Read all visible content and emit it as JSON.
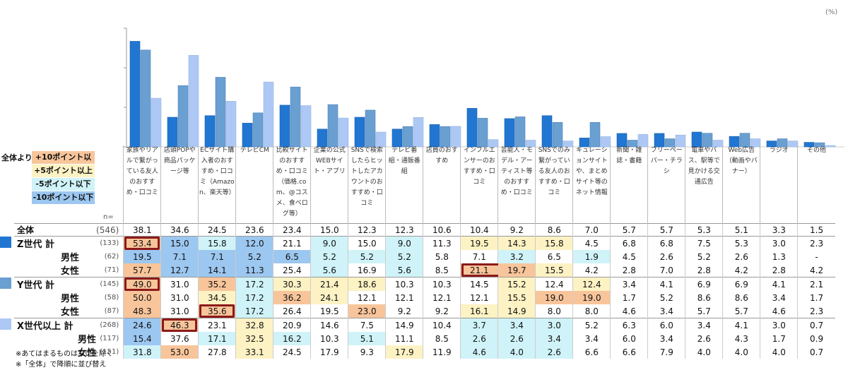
{
  "unit_label": "(%)",
  "legend": {
    "lead": "全体より",
    "items": [
      {
        "label": "+10ポイント以上",
        "color": "#f8c59b"
      },
      {
        "label": "+5ポイント以上",
        "color": "#fdf2c4"
      },
      {
        "label": "-5ポイント以下",
        "color": "#cff3f8"
      },
      {
        "label": "-10ポイント以下",
        "color": "#9cc7f0"
      }
    ],
    "n_label": "n="
  },
  "colors": {
    "z": "#2176d2",
    "y": "#6a9fd2",
    "x": "#adc8f5",
    "p10": "#f8c59b",
    "p5": "#fdf2c4",
    "m5": "#cff3f8",
    "m10": "#9cc7f0",
    "highlight_border": "#8b1a1a"
  },
  "chart_data": {
    "type": "bar",
    "title": "",
    "xlabel": "",
    "ylabel": "",
    "ylim": [
      0,
      60
    ],
    "grid": false,
    "categories": [
      "家族やリアルで繋がっている友人のおすすめ・口コミ",
      "店頭POPや商品パッケージ等",
      "ECサイト購入者のおすすめ・口コミ（Amazon、楽天等）",
      "テレビCM",
      "比較サイトのおすすめ・口コミ（価格.com、@コスメ、食べログ等）",
      "企業の公式WEBサイト・アプリ",
      "SNSで検索したらヒットしたアカウントのおすすめ・口コミ",
      "テレビ番組・通販番組",
      "店員のおすすめ",
      "インフルエンサーのおすすめ・口コミ",
      "芸能人・モデル・アーティスト等のおすすめ・口コミ",
      "SNSでのみ繋がっている友人のおすすめ・口コミ",
      "キュレーションサイトや、まとめサイト等のネット情報",
      "新聞・雑誌・書籍",
      "フリーペーパー・チラシ",
      "電車やバス、駅等で見かける交通広告",
      "Web広告（動画やバナー）",
      "ラジオ",
      "その他"
    ],
    "series": [
      {
        "name": "Z世代 計",
        "values": [
          53.4,
          15.0,
          15.8,
          12.0,
          21.1,
          9.0,
          15.0,
          9.0,
          11.3,
          19.5,
          14.3,
          15.8,
          4.5,
          6.8,
          6.8,
          7.5,
          5.3,
          3.0,
          2.3
        ]
      },
      {
        "name": "Y世代 計",
        "values": [
          49.0,
          31.0,
          35.2,
          17.2,
          30.3,
          21.4,
          18.6,
          10.3,
          10.3,
          14.5,
          15.2,
          12.4,
          12.4,
          3.4,
          4.1,
          6.9,
          6.9,
          4.1,
          2.1
        ]
      },
      {
        "name": "X世代以上 計",
        "values": [
          24.6,
          46.3,
          23.1,
          32.8,
          20.9,
          14.6,
          7.5,
          14.9,
          10.4,
          3.7,
          3.4,
          3.0,
          5.2,
          6.3,
          6.0,
          3.4,
          4.1,
          3.0,
          0.7
        ]
      }
    ]
  },
  "table": {
    "headers": [
      "家族やリアルで繋がっている友人のおすすめ・口コミ",
      "店頭POPや商品パッケージ等",
      "ECサイト購入者のおすすめ・口コミ（Amazon、楽天等）",
      "テレビCM",
      "比較サイトのおすすめ・口コミ（価格.com、@コスメ、食べログ等）",
      "企業の公式WEBサイト・アプリ",
      "SNSで検索したらヒットしたアカウントのおすすめ・口コミ",
      "テレビ番組・通販番組",
      "店員のおすすめ",
      "インフルエンサーのおすすめ・口コミ",
      "芸能人・モデル・アーティスト等のおすすめ・口コミ",
      "SNSでのみ繋がっている友人のおすすめ・口コミ",
      "キュレーションサイトや、まとめサイト等のネット情報",
      "新聞・雑誌・書籍",
      "フリーペーパー・チラシ",
      "電車やバス、駅等で見かける交通広告",
      "Web広告（動画やバナー）",
      "ラジオ",
      "その他"
    ],
    "rows": [
      {
        "label": "全体",
        "n": "(546)",
        "group": "total",
        "indent": 0,
        "values": [
          "38.1",
          "34.6",
          "24.5",
          "23.6",
          "23.4",
          "15.0",
          "12.3",
          "12.3",
          "10.6",
          "10.4",
          "9.2",
          "8.6",
          "7.0",
          "5.7",
          "5.7",
          "5.3",
          "5.1",
          "3.3",
          "1.5"
        ],
        "shade": [
          "",
          "",
          "",
          "",
          "",
          "",
          "",
          "",
          "",
          "",
          "",
          "",
          "",
          "",
          "",
          "",
          "",
          "",
          ""
        ],
        "highlight": []
      },
      {
        "label": "Z世代 計",
        "n": "(133)",
        "group": "z",
        "indent": 0,
        "values": [
          "53.4",
          "15.0",
          "15.8",
          "12.0",
          "21.1",
          "9.0",
          "15.0",
          "9.0",
          "11.3",
          "19.5",
          "14.3",
          "15.8",
          "4.5",
          "6.8",
          "6.8",
          "7.5",
          "5.3",
          "3.0",
          "2.3"
        ],
        "shade": [
          "p10",
          "m10",
          "m5",
          "m10",
          "",
          "m5",
          "",
          "m5",
          "",
          "p5",
          "p5",
          "p5",
          "",
          "",
          "",
          "",
          "",
          "",
          ""
        ],
        "highlight": [
          0
        ]
      },
      {
        "label": "男性",
        "n": "(62)",
        "group": "z",
        "indent": 1,
        "values": [
          "19.5",
          "7.1",
          "7.1",
          "5.2",
          "6.5",
          "5.2",
          "5.2",
          "5.2",
          "5.8",
          "7.1",
          "3.2",
          "6.5",
          "1.9",
          "4.5",
          "2.6",
          "5.2",
          "2.6",
          "1.3",
          "-"
        ],
        "shade": [
          "m10",
          "m10",
          "m10",
          "m10",
          "m10",
          "m5",
          "m5",
          "m5",
          "",
          "",
          "m5",
          "",
          "m5",
          "",
          "",
          "",
          "",
          "",
          ""
        ],
        "highlight": []
      },
      {
        "label": "女性",
        "n": "(71)",
        "group": "z",
        "indent": 1,
        "values": [
          "57.7",
          "12.7",
          "14.1",
          "11.3",
          "25.4",
          "5.6",
          "16.9",
          "5.6",
          "8.5",
          "21.1",
          "19.7",
          "15.5",
          "4.2",
          "2.8",
          "7.0",
          "2.8",
          "4.2",
          "2.8",
          "4.2"
        ],
        "shade": [
          "p10",
          "m10",
          "m10",
          "m10",
          "",
          "m5",
          "",
          "m5",
          "",
          "p10",
          "p10",
          "p5",
          "",
          "",
          "",
          "",
          "",
          "",
          ""
        ],
        "highlight": [
          9,
          10
        ]
      },
      {
        "label": "Y世代 計",
        "n": "(145)",
        "group": "y",
        "indent": 0,
        "values": [
          "49.0",
          "31.0",
          "35.2",
          "17.2",
          "30.3",
          "21.4",
          "18.6",
          "10.3",
          "10.3",
          "14.5",
          "15.2",
          "12.4",
          "12.4",
          "3.4",
          "4.1",
          "6.9",
          "6.9",
          "4.1",
          "2.1"
        ],
        "shade": [
          "p10",
          "",
          "p10",
          "m5",
          "p5",
          "p5",
          "p5",
          "",
          "",
          "",
          "p5",
          "",
          "p5",
          "",
          "",
          "",
          "",
          "",
          ""
        ],
        "highlight": [
          0
        ]
      },
      {
        "label": "男性",
        "n": "(58)",
        "group": "y",
        "indent": 1,
        "values": [
          "50.0",
          "31.0",
          "34.5",
          "17.2",
          "36.2",
          "24.1",
          "12.1",
          "12.1",
          "12.1",
          "12.1",
          "15.5",
          "19.0",
          "19.0",
          "1.7",
          "5.2",
          "8.6",
          "8.6",
          "3.4",
          "1.7"
        ],
        "shade": [
          "p10",
          "",
          "p5",
          "m5",
          "p10",
          "p5",
          "",
          "",
          "",
          "",
          "p5",
          "p10",
          "p10",
          "",
          "",
          "",
          "",
          "",
          ""
        ],
        "highlight": []
      },
      {
        "label": "女性",
        "n": "(87)",
        "group": "y",
        "indent": 1,
        "values": [
          "48.3",
          "31.0",
          "35.6",
          "17.2",
          "26.4",
          "19.5",
          "23.0",
          "9.2",
          "9.2",
          "16.1",
          "14.9",
          "8.0",
          "8.0",
          "4.6",
          "3.4",
          "5.7",
          "5.7",
          "4.6",
          "2.3"
        ],
        "shade": [
          "p10",
          "",
          "p10",
          "m5",
          "",
          "",
          "p10",
          "",
          "",
          "p5",
          "p5",
          "",
          "",
          "",
          "",
          "",
          "",
          "",
          ""
        ],
        "highlight": [
          2
        ]
      },
      {
        "label": "X世代以上 計",
        "n": "(268)",
        "group": "x",
        "indent": 0,
        "values": [
          "24.6",
          "46.3",
          "23.1",
          "32.8",
          "20.9",
          "14.6",
          "7.5",
          "14.9",
          "10.4",
          "3.7",
          "3.4",
          "3.0",
          "5.2",
          "6.3",
          "6.0",
          "3.4",
          "4.1",
          "3.0",
          "0.7"
        ],
        "shade": [
          "m10",
          "p10",
          "",
          "p5",
          "",
          "",
          "",
          "",
          "",
          "m5",
          "m5",
          "m5",
          "",
          "",
          "",
          "",
          "",
          "",
          ""
        ],
        "highlight": [
          1
        ]
      },
      {
        "label": "男性",
        "n": "(117)",
        "group": "x",
        "indent": 1,
        "values": [
          "15.4",
          "37.6",
          "17.1",
          "32.5",
          "16.2",
          "10.3",
          "5.1",
          "11.1",
          "8.5",
          "2.6",
          "2.6",
          "3.4",
          "3.4",
          "6.0",
          "3.4",
          "2.6",
          "4.3",
          "1.7",
          "0.9"
        ],
        "shade": [
          "m10",
          "",
          "m5",
          "p5",
          "m5",
          "",
          "m5",
          "",
          "",
          "m5",
          "m5",
          "m5",
          "",
          "",
          "",
          "",
          "",
          "",
          ""
        ],
        "highlight": []
      },
      {
        "label": "女性",
        "n": "(151)",
        "group": "x",
        "indent": 1,
        "values": [
          "31.8",
          "53.0",
          "27.8",
          "33.1",
          "24.5",
          "17.9",
          "9.3",
          "17.9",
          "11.9",
          "4.6",
          "4.0",
          "2.6",
          "6.6",
          "6.6",
          "7.9",
          "4.0",
          "4.0",
          "4.0",
          "0.7"
        ],
        "shade": [
          "m5",
          "p10",
          "",
          "p5",
          "",
          "",
          "",
          "p5",
          "",
          "m5",
          "m5",
          "m5",
          "",
          "",
          "",
          "",
          "",
          "",
          ""
        ],
        "highlight": []
      }
    ]
  },
  "notes": [
    "※あてはまるものはないを除く",
    "※「全体」で降順に並び替え"
  ]
}
